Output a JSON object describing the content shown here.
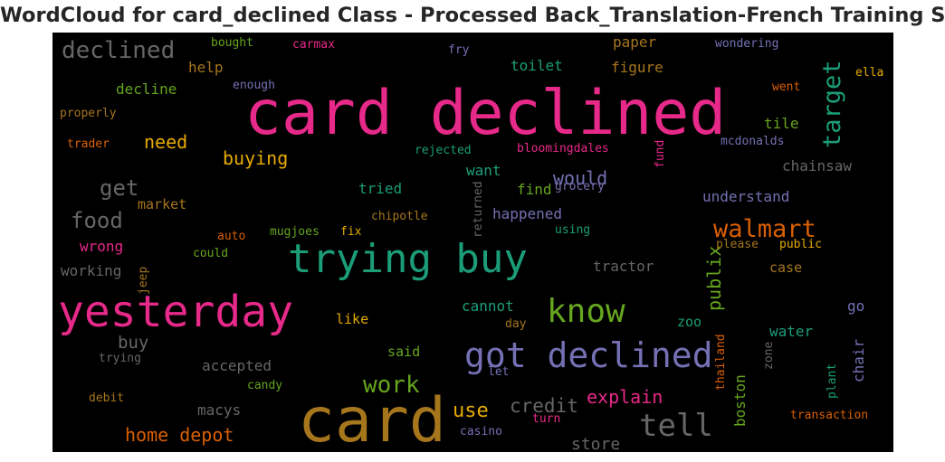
{
  "chart_data": {
    "type": "wordcloud",
    "title": "WordCloud for card_declined Class - Processed Back_Translation-French Training Set",
    "background": "#000000",
    "palette": "Dark2",
    "words": [
      {
        "text": "card declined",
        "color": "#e7298a"
      },
      {
        "text": "card",
        "color": "#a6761d"
      },
      {
        "text": "yesterday",
        "color": "#e7298a"
      },
      {
        "text": "trying buy",
        "color": "#1b9e77"
      },
      {
        "text": "got declined",
        "color": "#7570b3"
      },
      {
        "text": "know",
        "color": "#66a61e"
      },
      {
        "text": "tell",
        "color": "#666666"
      },
      {
        "text": "walmart",
        "color": "#d95f02"
      },
      {
        "text": "target",
        "color": "#1b9e77"
      },
      {
        "text": "declined",
        "color": "#666666"
      },
      {
        "text": "work",
        "color": "#66a61e"
      },
      {
        "text": "food",
        "color": "#666666"
      },
      {
        "text": "get",
        "color": "#666666"
      },
      {
        "text": "explain",
        "color": "#e7298a"
      },
      {
        "text": "use",
        "color": "#e6ab02"
      },
      {
        "text": "credit",
        "color": "#666666"
      },
      {
        "text": "home depot",
        "color": "#d95f02"
      },
      {
        "text": "would",
        "color": "#7570b3"
      },
      {
        "text": "publix",
        "color": "#66a61e"
      },
      {
        "text": "buying",
        "color": "#e6ab02"
      },
      {
        "text": "need",
        "color": "#e6ab02"
      },
      {
        "text": "store",
        "color": "#666666"
      },
      {
        "text": "boston",
        "color": "#66a61e"
      },
      {
        "text": "buy",
        "color": "#666666"
      },
      {
        "text": "chair",
        "color": "#7570b3"
      },
      {
        "text": "understand",
        "color": "#7570b3"
      },
      {
        "text": "happened",
        "color": "#7570b3"
      },
      {
        "text": "macys",
        "color": "#666666"
      },
      {
        "text": "chainsaw",
        "color": "#666666"
      },
      {
        "text": "tractor",
        "color": "#666666"
      },
      {
        "text": "accepted",
        "color": "#666666"
      },
      {
        "text": "figure",
        "color": "#a6761d"
      },
      {
        "text": "wrong",
        "color": "#e7298a"
      },
      {
        "text": "working",
        "color": "#666666"
      },
      {
        "text": "cannot",
        "color": "#1b9e77"
      },
      {
        "text": "tile",
        "color": "#66a61e"
      },
      {
        "text": "water",
        "color": "#1b9e77"
      },
      {
        "text": "paper",
        "color": "#a6761d"
      },
      {
        "text": "toilet",
        "color": "#1b9e77"
      },
      {
        "text": "want",
        "color": "#1b9e77"
      },
      {
        "text": "tried",
        "color": "#1b9e77"
      },
      {
        "text": "find",
        "color": "#66a61e"
      },
      {
        "text": "decline",
        "color": "#66a61e"
      },
      {
        "text": "help",
        "color": "#a6761d"
      },
      {
        "text": "market",
        "color": "#a6761d"
      },
      {
        "text": "case",
        "color": "#a6761d"
      },
      {
        "text": "go",
        "color": "#7570b3"
      },
      {
        "text": "zoo",
        "color": "#1b9e77"
      },
      {
        "text": "like",
        "color": "#e6ab02"
      },
      {
        "text": "said",
        "color": "#66a61e"
      },
      {
        "text": "bloomingdales",
        "color": "#e7298a"
      },
      {
        "text": "rejected",
        "color": "#1b9e77"
      },
      {
        "text": "mcdonalds",
        "color": "#7570b3"
      },
      {
        "text": "wondering",
        "color": "#7570b3"
      },
      {
        "text": "went",
        "color": "#d95f02"
      },
      {
        "text": "ella",
        "color": "#e6ab02"
      },
      {
        "text": "bought",
        "color": "#66a61e"
      },
      {
        "text": "carmax",
        "color": "#e7298a"
      },
      {
        "text": "fry",
        "color": "#7570b3"
      },
      {
        "text": "enough",
        "color": "#7570b3"
      },
      {
        "text": "properly",
        "color": "#a6761d"
      },
      {
        "text": "trader",
        "color": "#d95f02"
      },
      {
        "text": "fund",
        "color": "#e7298a"
      },
      {
        "text": "grocery",
        "color": "#7570b3"
      },
      {
        "text": "returned",
        "color": "#666666"
      },
      {
        "text": "chipotle",
        "color": "#a6761d"
      },
      {
        "text": "using",
        "color": "#1b9e77"
      },
      {
        "text": "auto",
        "color": "#d95f02"
      },
      {
        "text": "mugjoes",
        "color": "#66a61e"
      },
      {
        "text": "fix",
        "color": "#e6ab02"
      },
      {
        "text": "could",
        "color": "#66a61e"
      },
      {
        "text": "jeep",
        "color": "#a6761d"
      },
      {
        "text": "please",
        "color": "#a6761d"
      },
      {
        "text": "public",
        "color": "#e6ab02"
      },
      {
        "text": "trying",
        "color": "#666666"
      },
      {
        "text": "day",
        "color": "#a6761d"
      },
      {
        "text": "thailand",
        "color": "#d95f02"
      },
      {
        "text": "zone",
        "color": "#666666"
      },
      {
        "text": "plant",
        "color": "#1b9e77"
      },
      {
        "text": "let",
        "color": "#7570b3"
      },
      {
        "text": "candy",
        "color": "#66a61e"
      },
      {
        "text": "debit",
        "color": "#a6761d"
      },
      {
        "text": "turn",
        "color": "#e7298a"
      },
      {
        "text": "casino",
        "color": "#7570b3"
      },
      {
        "text": "transaction",
        "color": "#d95f02"
      }
    ]
  }
}
